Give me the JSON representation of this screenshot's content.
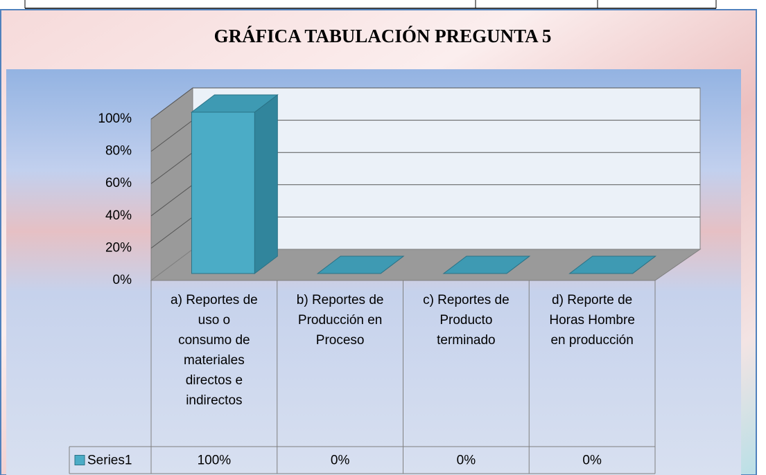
{
  "chart_data": {
    "type": "bar3d",
    "title": "GRÁFICA TABULACIÓN PREGUNTA 5",
    "categories": [
      "a) Reportes de uso o consumo de materiales directos e indirectos",
      "b) Reportes de Producción en Proceso",
      "c) Reportes de Producto terminado",
      "d) Reporte de Horas Hombre en producción"
    ],
    "series": [
      {
        "name": "Series1",
        "color": "#4bacc6",
        "values": [
          100,
          0,
          0,
          0
        ],
        "value_labels": [
          "100%",
          "0%",
          "0%",
          "0%"
        ]
      }
    ],
    "ylim": [
      0,
      100
    ],
    "yticks": [
      {
        "value": 0,
        "label": "0%"
      },
      {
        "value": 20,
        "label": "20%"
      },
      {
        "value": 40,
        "label": "40%"
      },
      {
        "value": 60,
        "label": "60%"
      },
      {
        "value": 80,
        "label": "80%"
      },
      {
        "value": 100,
        "label": "100%"
      }
    ],
    "grid": true,
    "data_table": true
  }
}
